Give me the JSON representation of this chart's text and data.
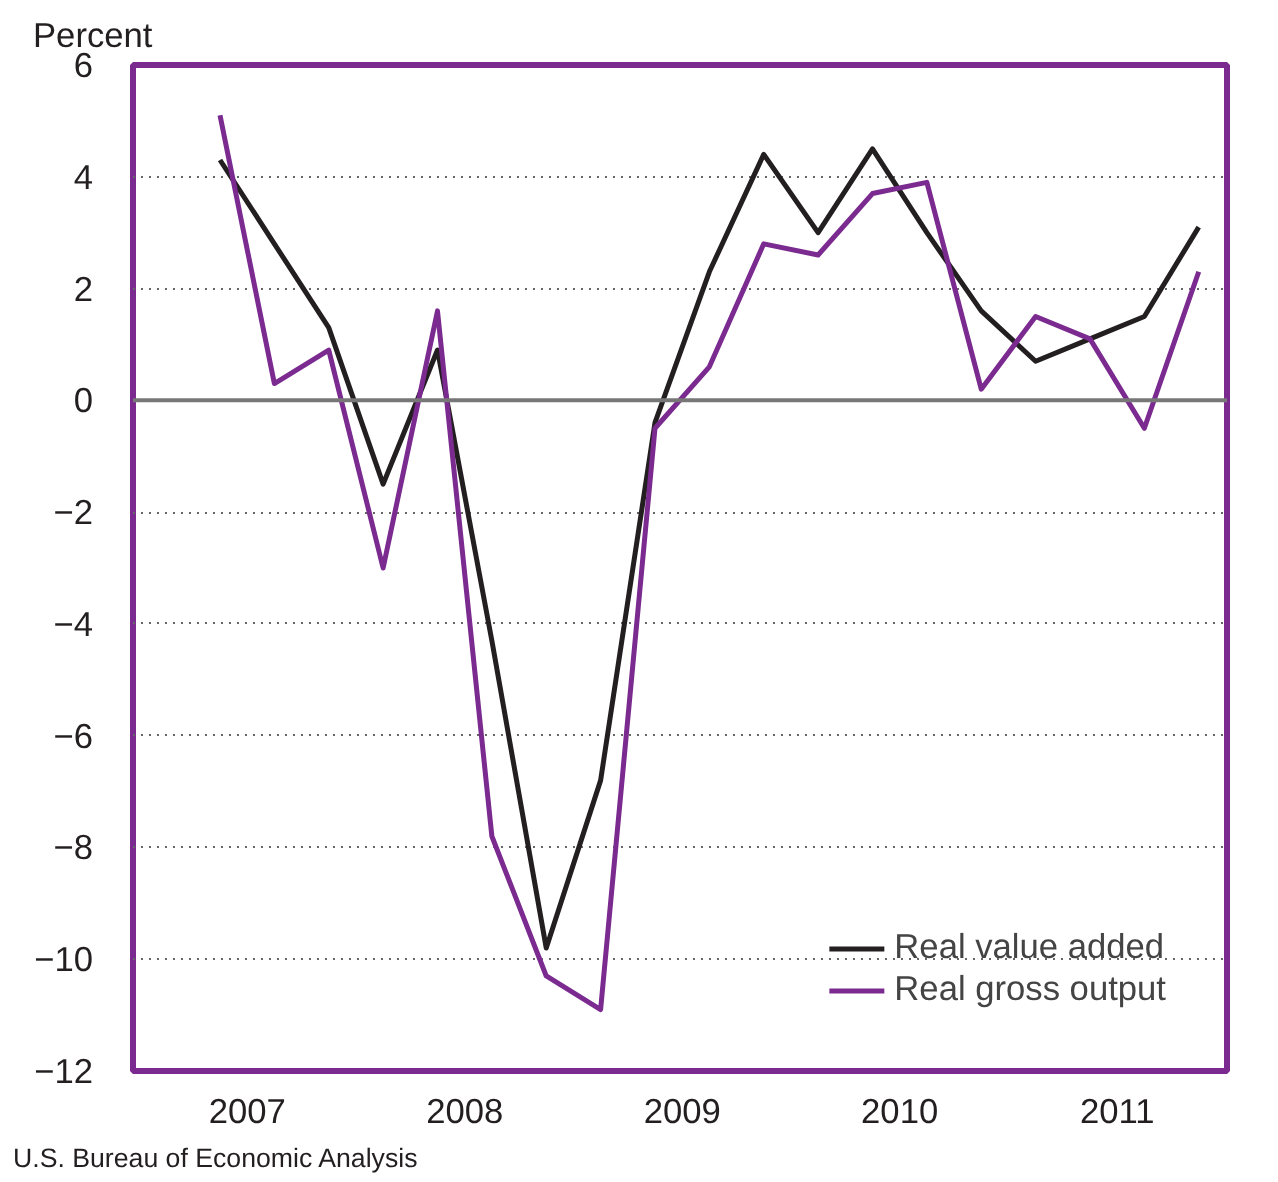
{
  "chart_data": {
    "type": "line",
    "ylabel": "Percent",
    "x": [
      2007,
      2007.25,
      2007.5,
      2007.75,
      2008,
      2008.25,
      2008.5,
      2008.75,
      2009,
      2009.25,
      2009.5,
      2009.75,
      2010,
      2010.25,
      2010.5,
      2010.75,
      2011,
      2011.25,
      2011.5
    ],
    "series": [
      {
        "name": "Real value added",
        "color": "#231f20",
        "values": [
          4.3,
          2.8,
          1.3,
          -1.5,
          0.9,
          -4.3,
          -9.8,
          -6.8,
          -0.4,
          2.3,
          4.4,
          3.0,
          4.5,
          3.0,
          1.6,
          0.7,
          1.1,
          1.5,
          3.1
        ]
      },
      {
        "name": "Real gross output",
        "color": "#7b2a90",
        "values": [
          5.1,
          0.3,
          0.9,
          -3.0,
          1.6,
          -7.8,
          -10.3,
          -10.9,
          -0.5,
          0.6,
          2.8,
          2.6,
          3.7,
          3.9,
          0.2,
          1.5,
          1.1,
          -0.5,
          2.3
        ]
      }
    ],
    "xlim": [
      2006.6,
      2011.63
    ],
    "ylim": [
      -12,
      6
    ],
    "xticks": [
      {
        "value": 2007.125,
        "label": "2007"
      },
      {
        "value": 2008.125,
        "label": "2008"
      },
      {
        "value": 2009.125,
        "label": "2009"
      },
      {
        "value": 2010.125,
        "label": "2010"
      },
      {
        "value": 2011.125,
        "label": "2011"
      }
    ],
    "yticks": [
      6,
      4,
      2,
      0,
      {
        "value": -2,
        "label": "−2"
      },
      {
        "value": -4,
        "label": "−4"
      },
      {
        "value": -6,
        "label": "−6"
      },
      {
        "value": -8,
        "label": "−8"
      },
      {
        "value": -10,
        "label": "−10"
      },
      {
        "value": -12,
        "label": "−12"
      }
    ],
    "ref_lines": [
      {
        "axis": "y",
        "value": 0,
        "color": "#777777"
      }
    ],
    "grid": "y",
    "legend": "bottom right",
    "marker": "none",
    "line_style": "solid",
    "annotations": [
      "U.S. Bureau of Economic Analysis"
    ]
  }
}
